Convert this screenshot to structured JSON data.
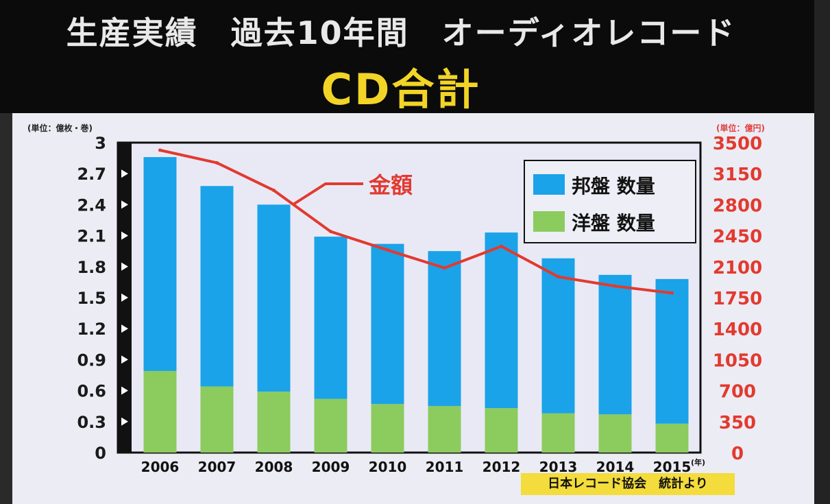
{
  "title": {
    "line1": "生産実績　過去10年間　オーディオレコード",
    "line2": "CD合計"
  },
  "units": {
    "left": "(単位：億枚・巻)",
    "right": "(単位：億円)",
    "x_suffix": "(年)"
  },
  "credit": "日本レコード協会　統計より",
  "annotation": "金額",
  "colors": {
    "domestic": "#1aa3e8",
    "foreign": "#8ccb5e",
    "amount": "#e23a2f",
    "title_accent": "#f2d427"
  },
  "chart_data": {
    "type": "bar",
    "stacked": true,
    "categories": [
      "2006",
      "2007",
      "2008",
      "2009",
      "2010",
      "2011",
      "2012",
      "2013",
      "2014",
      "2015"
    ],
    "series": [
      {
        "name": "邦盤 数量",
        "axis": "left",
        "type": "bar",
        "values": [
          2.07,
          1.94,
          1.81,
          1.57,
          1.55,
          1.5,
          1.7,
          1.5,
          1.35,
          1.4
        ]
      },
      {
        "name": "洋盤 数量",
        "axis": "left",
        "type": "bar",
        "values": [
          0.79,
          0.64,
          0.59,
          0.52,
          0.47,
          0.45,
          0.43,
          0.38,
          0.37,
          0.28
        ]
      },
      {
        "name": "金額",
        "axis": "right",
        "type": "line",
        "values": [
          3415,
          3272,
          2961,
          2496,
          2287,
          2085,
          2329,
          1985,
          1879,
          1801
        ]
      }
    ],
    "y_left": {
      "min": 0,
      "max": 3,
      "ticks": [
        "0",
        "0.3",
        "0.6",
        "0.9",
        "1.2",
        "1.5",
        "1.8",
        "2.1",
        "2.4",
        "2.7",
        "3"
      ]
    },
    "y_right": {
      "min": 0,
      "max": 3500,
      "ticks": [
        "0",
        "350",
        "700",
        "1050",
        "1400",
        "1750",
        "2100",
        "2450",
        "2800",
        "3150",
        "3500"
      ]
    },
    "legend": [
      "邦盤 数量",
      "洋盤 数量"
    ],
    "legend_position": "top-right",
    "grid": false
  }
}
